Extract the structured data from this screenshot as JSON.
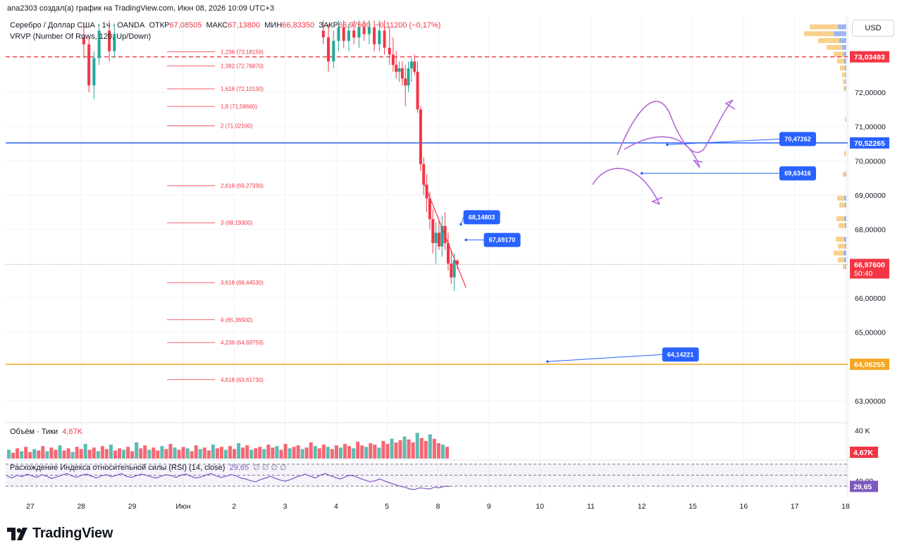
{
  "header": {
    "author_line": "ana2303 создал(а) график на TradingView.com, Июн 08, 2026 10:09 UTC+3"
  },
  "legend": {
    "symbol": "Серебро / Доллар США · 1ч · OANDA",
    "o_label": "ОТКР",
    "o_val": "67,08505",
    "h_label": "МАКС",
    "h_val": "67,13800",
    "l_label": "МИН",
    "l_val": "66,83350",
    "c_label": "ЗАКР",
    "c_val": "66,97600",
    "change": "−0,11200 (−0,17%)",
    "indicator": "VRVP (Number Of Rows, 120, Up/Down)"
  },
  "currency_button": "USD",
  "colors": {
    "bull": "#26a69a",
    "bear": "#f23645",
    "blue_line": "#2962ff",
    "orange_line": "#f5a623",
    "fib": "#f23645",
    "callout": "#2962ff",
    "purple": "#b36ad6",
    "rsi_line": "#7e57c2"
  },
  "chart_data": {
    "type": "candlestick",
    "instrument": "Серебро / Доллар США",
    "timeframe": "1ч",
    "price_axis": {
      "ylim": [
        62.4,
        74.2
      ],
      "ticks": [
        {
          "value": 72.0,
          "label": "72,00000"
        },
        {
          "value": 71.0,
          "label": "71,00000"
        },
        {
          "value": 70.0,
          "label": "70,00000"
        },
        {
          "value": 69.0,
          "label": "69,00000"
        },
        {
          "value": 68.0,
          "label": "68,00000"
        },
        {
          "value": 66.0,
          "label": "66,00000"
        },
        {
          "value": 65.0,
          "label": "65,00000"
        },
        {
          "value": 63.0,
          "label": "63,00000"
        }
      ]
    },
    "time_axis": {
      "ticks": [
        {
          "t": 0.0,
          "label": "27"
        },
        {
          "t": 1.0,
          "label": "28"
        },
        {
          "t": 2.0,
          "label": "29"
        },
        {
          "t": 3.0,
          "label": "Июн"
        },
        {
          "t": 4.0,
          "label": "2"
        },
        {
          "t": 5.0,
          "label": "3"
        },
        {
          "t": 6.0,
          "label": "4"
        },
        {
          "t": 7.0,
          "label": "5"
        },
        {
          "t": 8.0,
          "label": "8"
        },
        {
          "t": 9.0,
          "label": "9"
        },
        {
          "t": 10.0,
          "label": "10"
        },
        {
          "t": 11.0,
          "label": "11"
        },
        {
          "t": 12.0,
          "label": "12"
        },
        {
          "t": 13.0,
          "label": "15"
        },
        {
          "t": 14.0,
          "label": "16"
        },
        {
          "t": 15.0,
          "label": "17"
        },
        {
          "t": 16.0,
          "label": "18"
        }
      ]
    },
    "horizontal_lines": [
      {
        "price": 73.03493,
        "label": "73,03493",
        "style": "dashed",
        "color": "#f23645"
      },
      {
        "price": 70.52265,
        "label": "70,52265",
        "style": "solid",
        "color": "#2962ff"
      },
      {
        "price": 64.06255,
        "label": "64,06255",
        "style": "solid",
        "color": "#f5a623"
      }
    ],
    "last_price": {
      "price": 66.976,
      "label": "66,97600",
      "countdown": "50:40"
    },
    "fib_levels": [
      {
        "label": "1,236 (73,18159)",
        "price": 73.18159
      },
      {
        "label": "1,382 (72,76870)",
        "price": 72.7687
      },
      {
        "label": "1,618 (72,10130)",
        "price": 72.1013
      },
      {
        "label": "1,8 (71,58660)",
        "price": 71.5866
      },
      {
        "label": "2 (71,02100)",
        "price": 71.021
      },
      {
        "label": "2,618 (69,27330)",
        "price": 69.2733
      },
      {
        "label": "3 (68,19300)",
        "price": 68.193
      },
      {
        "label": "3,618 (66,44530)",
        "price": 66.4453
      },
      {
        "label": "4 (65,36500)",
        "price": 65.365
      },
      {
        "label": "4,236 (64,69759)",
        "price": 64.69759
      },
      {
        "label": "4,618 (63,61730)",
        "price": 63.6173
      }
    ],
    "annotations": [
      {
        "label": "70,47262",
        "price": 70.47262,
        "t_from": 12.5,
        "t_box": 14.7
      },
      {
        "label": "69,63416",
        "price": 69.63416,
        "t_from": 12.0,
        "t_box": 14.7
      },
      {
        "label": "68,14803",
        "price": 68.14803,
        "t_from": 8.45,
        "t_box": 8.5
      },
      {
        "label": "67,69170",
        "price": 67.6917,
        "t_from": 8.55,
        "t_box": 8.9
      },
      {
        "label": "64,14221",
        "price": 64.14221,
        "t_from": 10.15,
        "t_box": 12.4
      }
    ],
    "candles": [
      {
        "t": 1.05,
        "o": 73.6,
        "h": 74.0,
        "l": 73.0,
        "c": 73.4
      },
      {
        "t": 1.15,
        "o": 73.4,
        "h": 73.6,
        "l": 72.0,
        "c": 72.2
      },
      {
        "t": 1.25,
        "o": 72.2,
        "h": 73.2,
        "l": 71.8,
        "c": 73.0
      },
      {
        "t": 1.35,
        "o": 73.0,
        "h": 74.0,
        "l": 72.8,
        "c": 73.8
      },
      {
        "t": 1.55,
        "o": 73.8,
        "h": 74.1,
        "l": 72.9,
        "c": 73.2
      },
      {
        "t": 1.65,
        "o": 73.2,
        "h": 74.0,
        "l": 73.0,
        "c": 73.7
      },
      {
        "t": 5.75,
        "o": 73.8,
        "h": 74.1,
        "l": 73.4,
        "c": 73.6
      },
      {
        "t": 5.85,
        "o": 73.6,
        "h": 74.0,
        "l": 72.6,
        "c": 72.9
      },
      {
        "t": 5.95,
        "o": 72.9,
        "h": 73.8,
        "l": 72.7,
        "c": 73.5
      },
      {
        "t": 6.05,
        "o": 73.5,
        "h": 74.1,
        "l": 73.2,
        "c": 73.9
      },
      {
        "t": 6.15,
        "o": 73.9,
        "h": 74.1,
        "l": 73.3,
        "c": 73.5
      },
      {
        "t": 6.25,
        "o": 73.5,
        "h": 74.0,
        "l": 73.2,
        "c": 73.8
      },
      {
        "t": 6.35,
        "o": 73.8,
        "h": 74.1,
        "l": 73.4,
        "c": 73.6
      },
      {
        "t": 6.45,
        "o": 73.6,
        "h": 74.1,
        "l": 73.3,
        "c": 73.9
      },
      {
        "t": 6.55,
        "o": 73.9,
        "h": 74.1,
        "l": 73.5,
        "c": 73.7
      },
      {
        "t": 6.65,
        "o": 73.7,
        "h": 74.1,
        "l": 73.4,
        "c": 73.9
      },
      {
        "t": 6.75,
        "o": 73.9,
        "h": 74.1,
        "l": 73.2,
        "c": 73.4
      },
      {
        "t": 6.85,
        "o": 73.4,
        "h": 74.1,
        "l": 73.2,
        "c": 73.8
      },
      {
        "t": 6.95,
        "o": 73.8,
        "h": 74.1,
        "l": 73.1,
        "c": 73.3
      },
      {
        "t": 7.05,
        "o": 73.3,
        "h": 73.9,
        "l": 72.8,
        "c": 73.1
      },
      {
        "t": 7.12,
        "o": 73.1,
        "h": 73.6,
        "l": 72.6,
        "c": 72.8
      },
      {
        "t": 7.18,
        "o": 72.8,
        "h": 73.2,
        "l": 72.4,
        "c": 72.6
      },
      {
        "t": 7.24,
        "o": 72.6,
        "h": 72.9,
        "l": 72.3,
        "c": 72.7
      },
      {
        "t": 7.3,
        "o": 72.7,
        "h": 72.9,
        "l": 72.2,
        "c": 72.4
      },
      {
        "t": 7.36,
        "o": 72.4,
        "h": 72.8,
        "l": 71.6,
        "c": 72.2
      },
      {
        "t": 7.42,
        "o": 72.2,
        "h": 72.9,
        "l": 72.0,
        "c": 72.7
      },
      {
        "t": 7.48,
        "o": 72.7,
        "h": 73.0,
        "l": 72.3,
        "c": 72.9
      },
      {
        "t": 7.54,
        "o": 72.9,
        "h": 73.1,
        "l": 72.5,
        "c": 72.6
      },
      {
        "t": 7.6,
        "o": 72.6,
        "h": 72.9,
        "l": 71.4,
        "c": 71.5
      },
      {
        "t": 7.66,
        "o": 71.5,
        "h": 71.6,
        "l": 69.7,
        "c": 69.9
      },
      {
        "t": 7.72,
        "o": 69.9,
        "h": 70.1,
        "l": 69.0,
        "c": 69.3
      },
      {
        "t": 7.78,
        "o": 69.3,
        "h": 69.6,
        "l": 68.5,
        "c": 68.9
      },
      {
        "t": 7.84,
        "o": 68.9,
        "h": 69.1,
        "l": 68.0,
        "c": 68.3
      },
      {
        "t": 7.9,
        "o": 68.3,
        "h": 68.6,
        "l": 67.3,
        "c": 67.6
      },
      {
        "t": 7.96,
        "o": 67.6,
        "h": 68.2,
        "l": 67.0,
        "c": 67.9
      },
      {
        "t": 8.02,
        "o": 67.9,
        "h": 68.3,
        "l": 67.4,
        "c": 67.5
      },
      {
        "t": 8.08,
        "o": 67.5,
        "h": 68.4,
        "l": 67.2,
        "c": 68.1
      },
      {
        "t": 8.14,
        "o": 68.1,
        "h": 68.5,
        "l": 67.4,
        "c": 67.6
      },
      {
        "t": 8.2,
        "o": 67.6,
        "h": 67.9,
        "l": 66.8,
        "c": 67.0
      },
      {
        "t": 8.26,
        "o": 67.0,
        "h": 67.4,
        "l": 66.4,
        "c": 66.6
      },
      {
        "t": 8.32,
        "o": 66.6,
        "h": 67.3,
        "l": 66.2,
        "c": 67.1
      },
      {
        "t": 8.38,
        "o": 67.08505,
        "h": 67.138,
        "l": 66.8335,
        "c": 66.976
      }
    ],
    "volume": {
      "label": "Объём · Тики",
      "value_label": "4,67K",
      "axis_label": "40 K",
      "ymax": 45,
      "bars": [
        12,
        8,
        14,
        10,
        16,
        9,
        13,
        11,
        17,
        10,
        15,
        12,
        18,
        11,
        14,
        9,
        16,
        13,
        20,
        12,
        15,
        10,
        17,
        13,
        19,
        11,
        14,
        12,
        16,
        10,
        22,
        14,
        18,
        12,
        15,
        11,
        17,
        13,
        20,
        15,
        12,
        16,
        14,
        10,
        18,
        13,
        15,
        11,
        19,
        14,
        16,
        12,
        17,
        13,
        21,
        15,
        18,
        12,
        14,
        16,
        13,
        19,
        15,
        17,
        12,
        20,
        14,
        16,
        18,
        13,
        15,
        22,
        17,
        14,
        19,
        16,
        13,
        18,
        15,
        20,
        17,
        14,
        23,
        18,
        16,
        21,
        19,
        15,
        24,
        20,
        27,
        22,
        25,
        30,
        26,
        22,
        35,
        28,
        24,
        33,
        27,
        21,
        19,
        16
      ]
    },
    "rsi": {
      "label": "Расхождение Индекса относительной силы (RSI) (14, close)",
      "value": 29.65,
      "value_label": "29,65",
      "extra": "∅ ∅ ∅ ∅",
      "axis_label": "40,00",
      "ylim": [
        20,
        75
      ],
      "bands": [
        70,
        50,
        30
      ],
      "series": [
        48,
        45,
        50,
        47,
        52,
        49,
        46,
        51,
        48,
        44,
        47,
        50,
        53,
        49,
        46,
        50,
        52,
        48,
        45,
        49,
        51,
        47,
        50,
        53,
        48,
        46,
        49,
        52,
        50,
        47,
        45,
        48,
        51,
        49,
        46,
        50,
        52,
        48,
        45,
        47,
        50,
        53,
        49,
        46,
        48,
        51,
        49,
        45,
        43,
        40,
        38,
        42,
        45,
        48,
        44,
        41,
        39,
        42,
        46,
        49,
        52,
        48,
        45,
        50,
        53,
        49,
        46,
        43,
        47,
        50,
        48,
        44,
        41,
        38,
        40,
        43,
        39,
        36,
        33,
        30,
        28,
        25,
        24,
        27,
        26,
        25,
        28,
        27,
        30,
        29.65
      ]
    },
    "profile_bins": [
      {
        "price": 73.9,
        "up": 12,
        "dn": 40
      },
      {
        "price": 73.7,
        "up": 18,
        "dn": 42
      },
      {
        "price": 73.5,
        "up": 10,
        "dn": 30
      },
      {
        "price": 73.3,
        "up": 6,
        "dn": 22
      },
      {
        "price": 73.1,
        "up": 4,
        "dn": 14
      },
      {
        "price": 72.9,
        "up": 3,
        "dn": 10
      },
      {
        "price": 72.7,
        "up": 2,
        "dn": 7
      },
      {
        "price": 72.5,
        "up": 1,
        "dn": 5
      },
      {
        "price": 72.3,
        "up": 1,
        "dn": 4
      },
      {
        "price": 72.1,
        "up": 1,
        "dn": 3
      },
      {
        "price": 71.2,
        "up": 0,
        "dn": 2
      },
      {
        "price": 70.2,
        "up": 0,
        "dn": 3
      },
      {
        "price": 69.6,
        "up": 1,
        "dn": 4
      },
      {
        "price": 68.9,
        "up": 3,
        "dn": 10
      },
      {
        "price": 68.7,
        "up": 2,
        "dn": 8
      },
      {
        "price": 68.3,
        "up": 3,
        "dn": 11
      },
      {
        "price": 68.1,
        "up": 2,
        "dn": 9
      },
      {
        "price": 67.7,
        "up": 3,
        "dn": 12
      },
      {
        "price": 67.5,
        "up": 2,
        "dn": 10
      },
      {
        "price": 67.3,
        "up": 4,
        "dn": 14
      },
      {
        "price": 67.1,
        "up": 3,
        "dn": 9
      },
      {
        "price": 66.9,
        "up": 1,
        "dn": 4
      }
    ]
  },
  "branding": {
    "logo_text": "TradingView"
  }
}
